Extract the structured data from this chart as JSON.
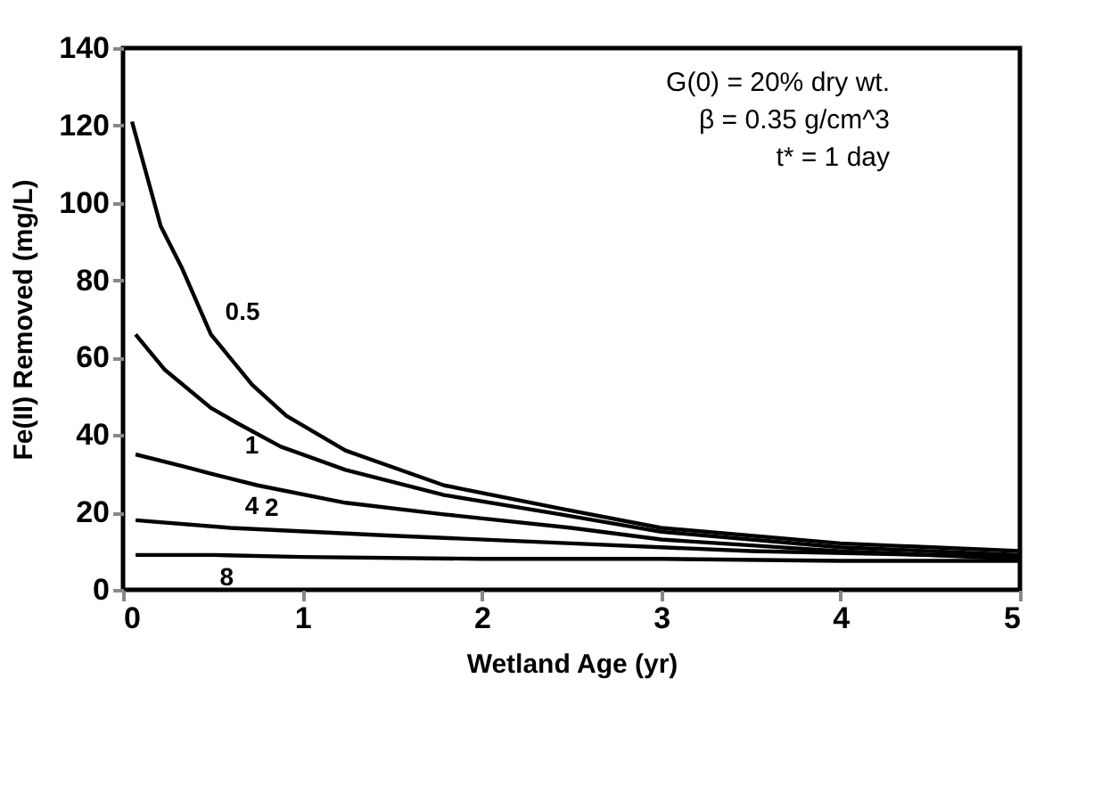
{
  "chart_data": {
    "type": "line",
    "xlabel": "Wetland Age (yr)",
    "ylabel": "Fe(II)     Removed     (mg/L)",
    "xlim": [
      0,
      5
    ],
    "ylim": [
      0,
      140
    ],
    "xticks": [
      0,
      1,
      2,
      3,
      4,
      5
    ],
    "yticks": [
      0,
      20,
      40,
      60,
      80,
      100,
      120,
      140
    ],
    "grid": false,
    "legend": false,
    "marker": "none",
    "line_style": "solid",
    "series": [
      {
        "name": "0.5",
        "color": "#000000",
        "x": [
          0.05,
          0.21,
          0.33,
          0.49,
          0.72,
          0.91,
          1.24,
          1.79,
          2.44,
          3,
          4,
          5
        ],
        "values": [
          121,
          94,
          83,
          66,
          53,
          45,
          36,
          27,
          21,
          16,
          12,
          10
        ]
      },
      {
        "name": "1",
        "color": "#000000",
        "x": [
          0.07,
          0.23,
          0.49,
          0.64,
          0.88,
          1.24,
          1.79,
          2.44,
          3,
          4,
          5
        ],
        "values": [
          66,
          57,
          47,
          43,
          37,
          31,
          24.5,
          19.5,
          15,
          11,
          9
        ]
      },
      {
        "name": "2",
        "color": "#000000",
        "x": [
          0.07,
          0.33,
          0.49,
          0.75,
          1.24,
          1.79,
          2.5,
          3,
          4,
          5
        ],
        "values": [
          35,
          32,
          30,
          27,
          22.5,
          19.5,
          16,
          13,
          10,
          8
        ]
      },
      {
        "name": "4",
        "color": "#000000",
        "x": [
          0.07,
          0.6,
          1.5,
          2.5,
          3.5,
          5
        ],
        "values": [
          18,
          16,
          14,
          12,
          10,
          8.5
        ]
      },
      {
        "name": "8",
        "color": "#000000",
        "x": [
          0.07,
          0.5,
          1,
          2,
          3,
          4,
          5
        ],
        "values": [
          9,
          9,
          8.5,
          8,
          8,
          7.5,
          7.5
        ]
      }
    ],
    "annotations": [
      "G(0) = 20% dry wt.",
      "β = 0.35 g/cm^3",
      "t* = 1 day"
    ]
  }
}
